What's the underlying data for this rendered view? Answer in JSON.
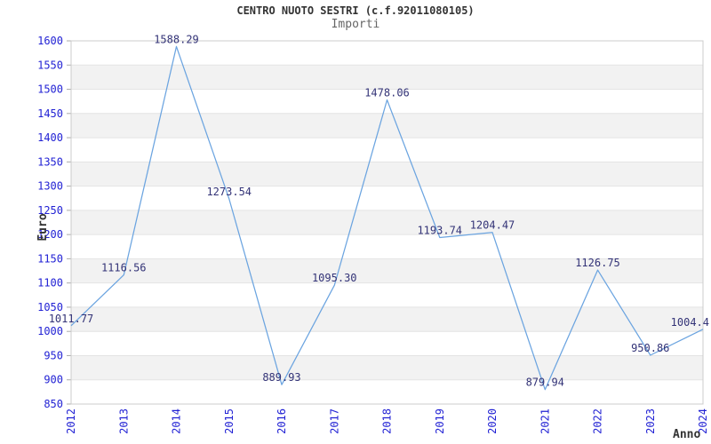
{
  "header": {
    "title": "CENTRO NUOTO SESTRI (c.f.92011080105)",
    "subtitle": "Importi"
  },
  "chart_data": {
    "type": "line",
    "title": "CENTRO NUOTO SESTRI (c.f.92011080105)",
    "subtitle": "Importi",
    "xlabel": "Anno",
    "ylabel": "Euro",
    "categories": [
      "2012",
      "2013",
      "2014",
      "2015",
      "2016",
      "2017",
      "2018",
      "2019",
      "2020",
      "2021",
      "2022",
      "2023",
      "2024"
    ],
    "series": [
      {
        "name": "Importi",
        "values": [
          1011.77,
          1116.56,
          1588.29,
          1273.54,
          889.93,
          1095.3,
          1478.06,
          1193.74,
          1204.47,
          879.94,
          1126.75,
          950.86,
          1004.4
        ]
      }
    ],
    "point_labels": [
      "1011.77",
      "1116.56",
      "1588.29",
      "1273.54",
      "889.93",
      "1095.30",
      "1478.06",
      "1193.74",
      "1204.47",
      "879.94",
      "1126.75",
      "950.86",
      "1004.4"
    ],
    "ylim": [
      850,
      1600
    ],
    "ytick_step": 50,
    "grid": true,
    "banded_background": true,
    "legend_position": "none",
    "colors": {
      "line": "#6ba4e0",
      "tick_label": "#2222d4",
      "point_label": "#333377",
      "band": "#f2f2f2",
      "gridline": "#e4e4e4",
      "border": "#cccccc",
      "tick_mark": "#aaaaaa",
      "title": "#333333",
      "subtitle": "#666666"
    }
  }
}
